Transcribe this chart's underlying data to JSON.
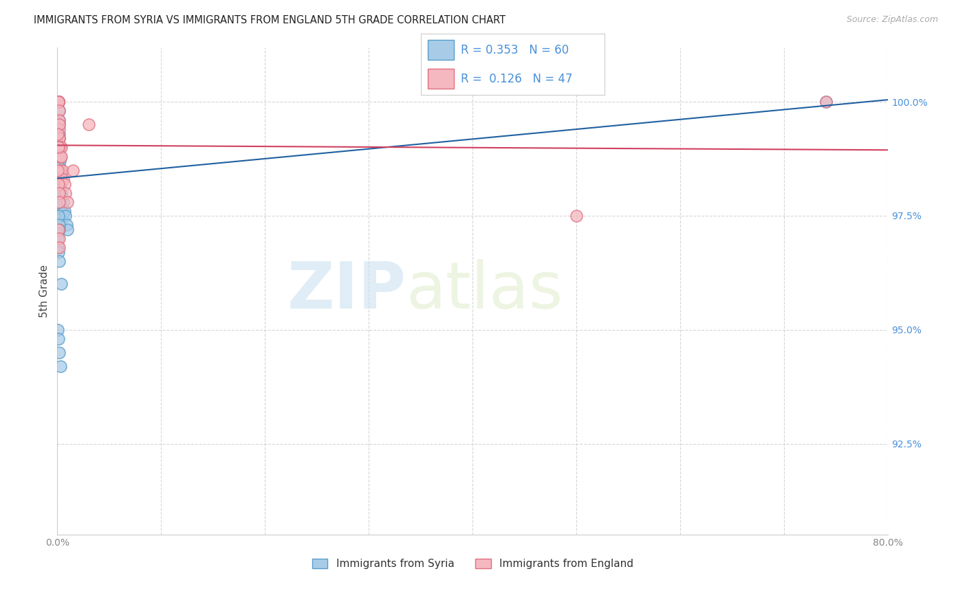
{
  "title": "IMMIGRANTS FROM SYRIA VS IMMIGRANTS FROM ENGLAND 5TH GRADE CORRELATION CHART",
  "source": "Source: ZipAtlas.com",
  "ylabel": "5th Grade",
  "xlim": [
    0.0,
    80.0
  ],
  "ylim": [
    90.5,
    101.2
  ],
  "yticks": [
    92.5,
    95.0,
    97.5,
    100.0
  ],
  "ytick_labels": [
    "92.5%",
    "95.0%",
    "97.5%",
    "100.0%"
  ],
  "xticks": [
    0.0,
    10.0,
    20.0,
    30.0,
    40.0,
    50.0,
    60.0,
    70.0,
    80.0
  ],
  "xtick_labels": [
    "0.0%",
    "",
    "",
    "",
    "",
    "",
    "",
    "",
    "80.0%"
  ],
  "series": [
    {
      "name": "Immigrants from Syria",
      "color": "#a8cce8",
      "edge_color": "#5a9dc8",
      "R": 0.353,
      "N": 60,
      "trend_color": "#2060a0",
      "x": [
        0.05,
        0.05,
        0.05,
        0.05,
        0.05,
        0.05,
        0.05,
        0.05,
        0.05,
        0.05,
        0.1,
        0.1,
        0.1,
        0.1,
        0.1,
        0.1,
        0.15,
        0.15,
        0.15,
        0.15,
        0.2,
        0.2,
        0.2,
        0.2,
        0.25,
        0.25,
        0.25,
        0.3,
        0.3,
        0.3,
        0.35,
        0.4,
        0.4,
        0.5,
        0.5,
        0.6,
        0.7,
        0.8,
        0.9,
        1.0,
        0.05,
        0.05,
        0.05,
        0.05,
        0.05,
        0.1,
        0.1,
        0.15,
        0.2,
        0.05,
        0.05,
        0.05,
        0.1,
        0.15,
        0.4,
        74.0,
        0.05,
        0.1,
        0.2,
        0.3
      ],
      "y": [
        100.0,
        100.0,
        100.0,
        100.0,
        100.0,
        100.0,
        100.0,
        100.0,
        100.0,
        100.0,
        100.0,
        100.0,
        100.0,
        100.0,
        100.0,
        100.0,
        99.8,
        99.6,
        99.5,
        99.3,
        99.2,
        99.0,
        98.8,
        98.6,
        99.0,
        98.7,
        98.5,
        98.4,
        98.2,
        98.0,
        98.0,
        97.9,
        97.7,
        97.6,
        97.5,
        97.8,
        97.6,
        97.5,
        97.3,
        97.2,
        98.8,
        98.6,
        98.4,
        98.2,
        98.0,
        97.8,
        97.5,
        97.3,
        97.2,
        97.1,
        97.0,
        96.8,
        96.7,
        96.5,
        96.0,
        100.0,
        95.0,
        94.8,
        94.5,
        94.2
      ]
    },
    {
      "name": "Immigrants from England",
      "color": "#f5b8c0",
      "edge_color": "#e07080",
      "R": 0.126,
      "N": 47,
      "trend_color": "#d04060",
      "x": [
        0.05,
        0.05,
        0.05,
        0.05,
        0.05,
        0.05,
        0.05,
        0.05,
        0.05,
        0.05,
        0.1,
        0.1,
        0.1,
        0.1,
        0.1,
        0.15,
        0.15,
        0.15,
        0.15,
        0.2,
        0.2,
        0.2,
        0.25,
        0.25,
        0.3,
        0.3,
        0.3,
        0.35,
        0.4,
        0.5,
        0.6,
        0.7,
        0.8,
        1.0,
        1.5,
        0.05,
        0.1,
        0.15,
        0.2,
        0.05,
        0.1,
        3.0,
        50.0,
        74.0,
        0.1,
        0.15,
        0.2
      ],
      "y": [
        100.0,
        100.0,
        100.0,
        100.0,
        100.0,
        100.0,
        100.0,
        100.0,
        100.0,
        100.0,
        100.0,
        100.0,
        100.0,
        100.0,
        100.0,
        99.8,
        99.6,
        99.4,
        99.2,
        99.5,
        99.2,
        99.0,
        99.0,
        98.8,
        98.8,
        98.5,
        98.3,
        99.0,
        98.8,
        98.5,
        98.3,
        98.2,
        98.0,
        97.8,
        98.5,
        98.5,
        98.2,
        98.0,
        97.8,
        99.3,
        99.0,
        99.5,
        97.5,
        100.0,
        97.2,
        97.0,
        96.8
      ]
    }
  ],
  "watermark_zip": "ZIP",
  "watermark_atlas": "atlas",
  "background_color": "#ffffff",
  "grid_color": "#cccccc",
  "title_fontsize": 10.5,
  "tick_color_y_right": "#4a90d9",
  "tick_color_x": "#888888",
  "legend_label_color": "#4a90d9"
}
